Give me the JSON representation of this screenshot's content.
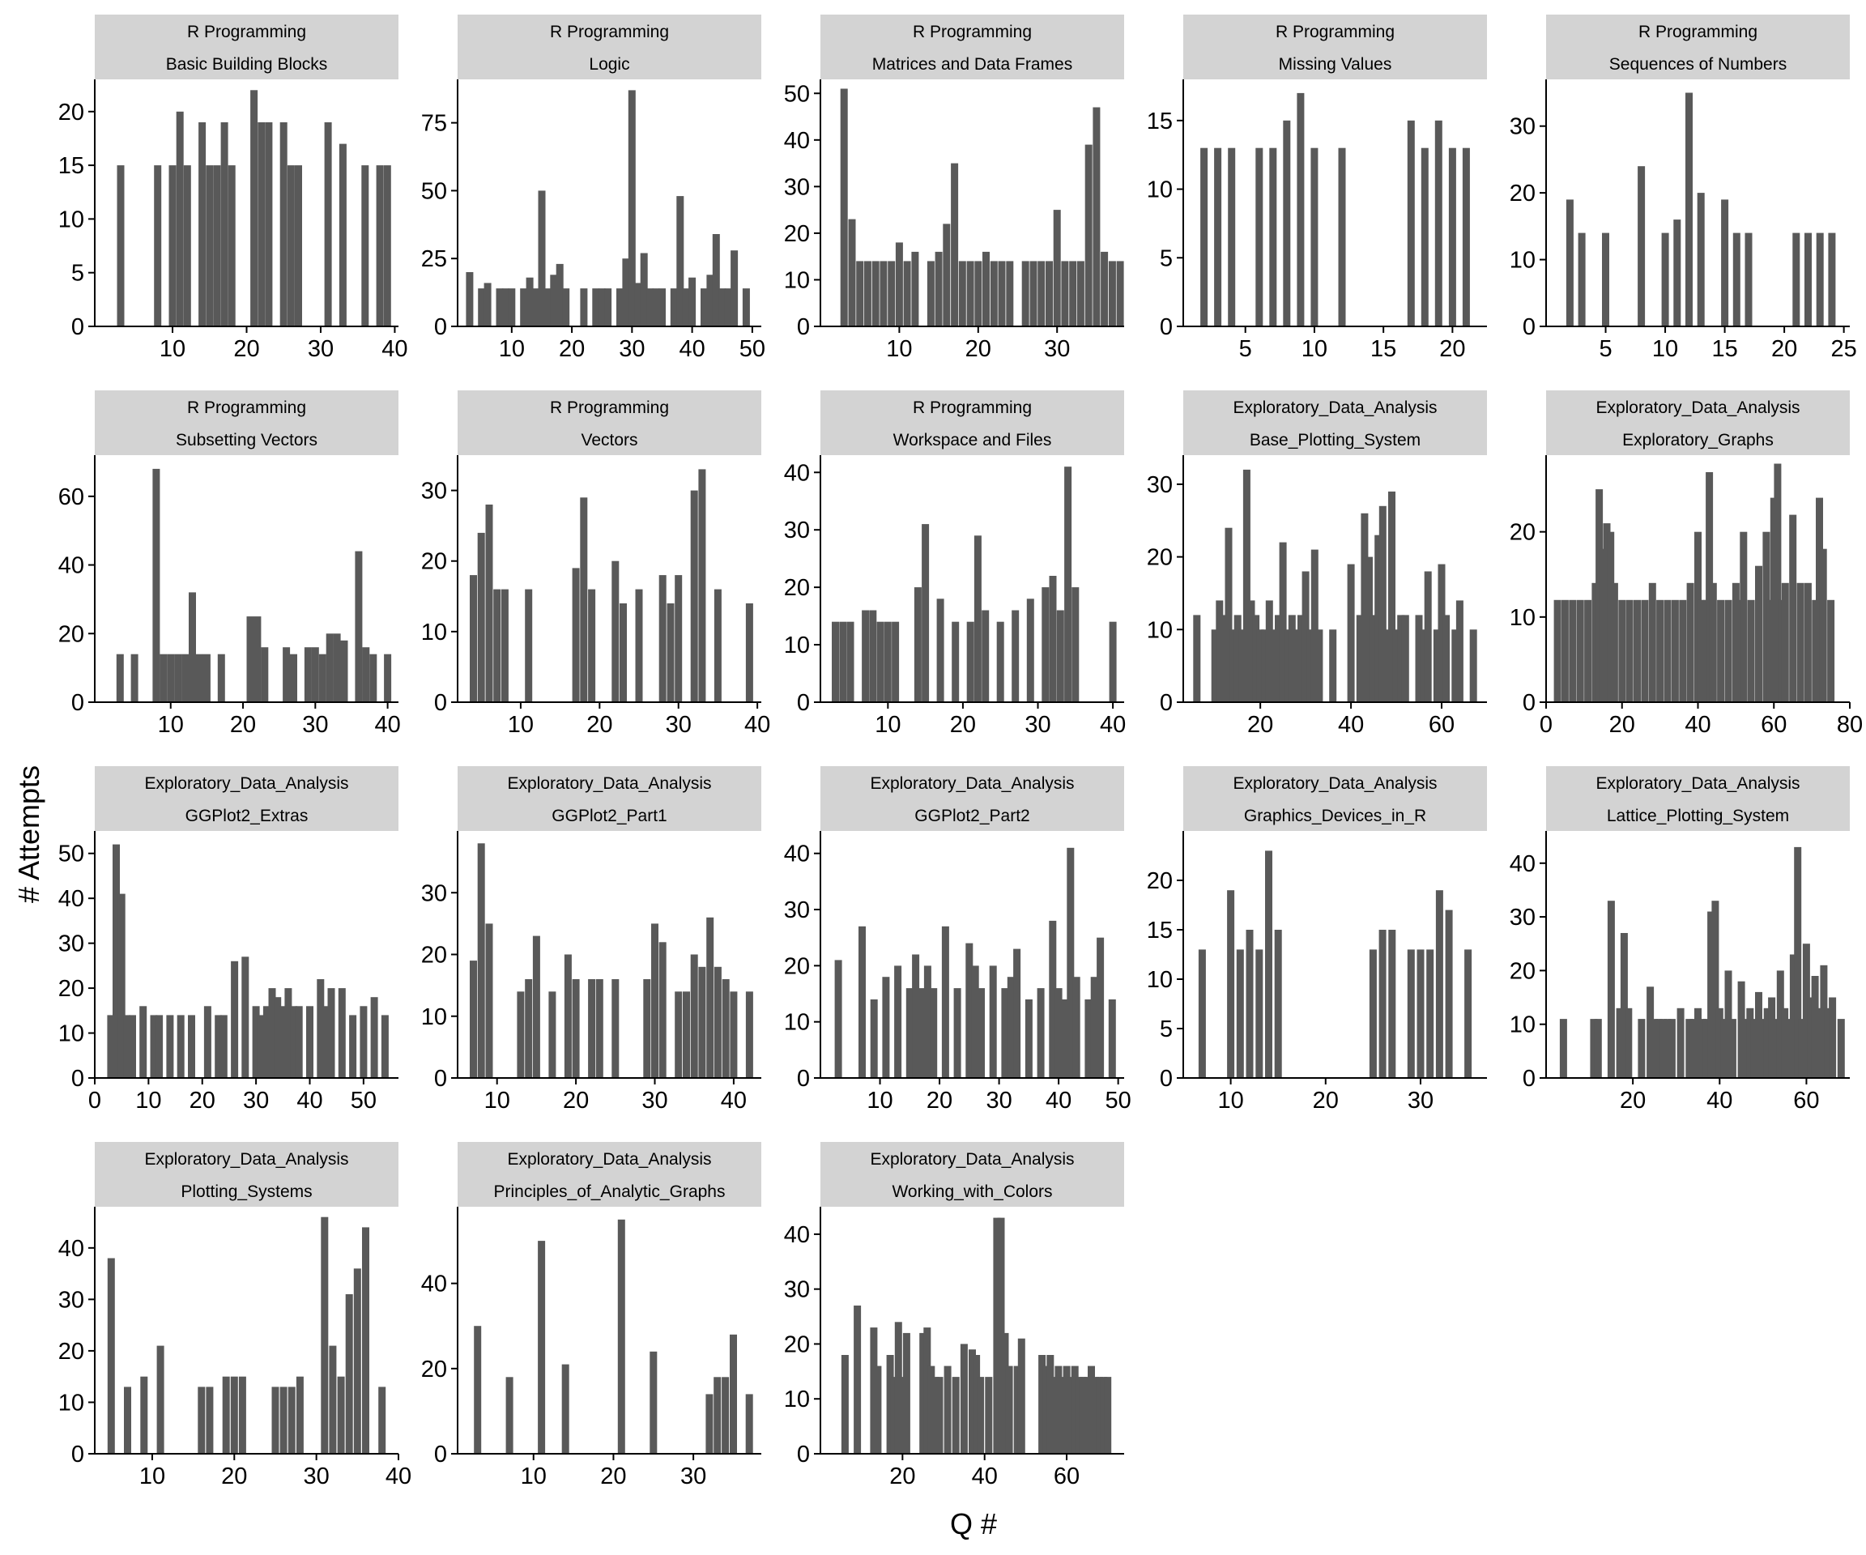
{
  "figure": {
    "xlabel": "Q #",
    "ylabel": "# Attempts",
    "colors": {
      "bar": "#595959",
      "strip": "#d3d3d3",
      "axis": "#000000",
      "background": "#ffffff"
    }
  },
  "chart_data": [
    {
      "type": "bar",
      "strip": [
        "R Programming",
        "Basic Building Blocks"
      ],
      "xlim": [
        -0.5,
        40.5
      ],
      "xticks": [
        10,
        20,
        30,
        40
      ],
      "ylim": [
        0,
        23
      ],
      "yticks": [
        0,
        5,
        10,
        15,
        20
      ],
      "x": [
        3,
        8,
        10,
        11,
        12,
        14,
        15,
        16,
        17,
        18,
        21,
        22,
        23,
        25,
        26,
        27,
        31,
        33,
        36,
        38,
        39
      ],
      "values": [
        15,
        15,
        15,
        20,
        15,
        19,
        15,
        15,
        19,
        15,
        22,
        19,
        19,
        19,
        15,
        15,
        19,
        17,
        15,
        15,
        15
      ]
    },
    {
      "type": "bar",
      "strip": [
        "R Programming",
        "Logic"
      ],
      "xlim": [
        1,
        51.5
      ],
      "xticks": [
        10,
        20,
        30,
        40,
        50
      ],
      "ylim": [
        0,
        91
      ],
      "yticks": [
        0,
        25,
        50,
        75
      ],
      "x": [
        3,
        5,
        6,
        8,
        9,
        10,
        12,
        13,
        14,
        15,
        16,
        17,
        18,
        19,
        22,
        24,
        25,
        26,
        28,
        29,
        30,
        31,
        32,
        33,
        34,
        35,
        37,
        38,
        39,
        40,
        42,
        43,
        44,
        45,
        46,
        47,
        49
      ],
      "values": [
        20,
        14,
        16,
        14,
        14,
        14,
        14,
        18,
        14,
        50,
        14,
        19,
        23,
        14,
        14,
        14,
        14,
        14,
        14,
        25,
        87,
        16,
        27,
        14,
        14,
        14,
        14,
        48,
        14,
        18,
        14,
        19,
        34,
        14,
        14,
        28,
        14
      ]
    },
    {
      "type": "bar",
      "strip": [
        "R Programming",
        "Matrices and Data Frames"
      ],
      "xlim": [
        0,
        38.5
      ],
      "xticks": [
        10,
        20,
        30
      ],
      "ylim": [
        0,
        53
      ],
      "yticks": [
        0,
        10,
        20,
        30,
        40,
        50
      ],
      "x": [
        3,
        4,
        5,
        6,
        7,
        8,
        9,
        10,
        11,
        12,
        14,
        15,
        16,
        17,
        18,
        19,
        20,
        21,
        22,
        23,
        24,
        26,
        27,
        28,
        29,
        30,
        31,
        32,
        33,
        34,
        35,
        36,
        37,
        38
      ],
      "values": [
        51,
        23,
        14,
        14,
        14,
        14,
        14,
        18,
        14,
        16,
        14,
        16,
        22,
        35,
        14,
        14,
        14,
        16,
        14,
        14,
        14,
        14,
        14,
        14,
        14,
        25,
        14,
        14,
        14,
        39,
        47,
        16,
        14,
        14
      ]
    },
    {
      "type": "bar",
      "strip": [
        "R Programming",
        "Missing Values"
      ],
      "xlim": [
        0.5,
        22.5
      ],
      "xticks": [
        5,
        10,
        15,
        20
      ],
      "ylim": [
        0,
        18
      ],
      "yticks": [
        0,
        5,
        10,
        15
      ],
      "x": [
        2,
        3,
        4,
        6,
        7,
        8,
        9,
        10,
        12,
        17,
        18,
        19,
        20,
        21
      ],
      "values": [
        13,
        13,
        13,
        13,
        13,
        15,
        17,
        13,
        13,
        15,
        13,
        15,
        13,
        13
      ]
    },
    {
      "type": "bar",
      "strip": [
        "R Programming",
        "Sequences of Numbers"
      ],
      "xlim": [
        0,
        25.5
      ],
      "xticks": [
        5,
        10,
        15,
        20,
        25
      ],
      "ylim": [
        0,
        37
      ],
      "yticks": [
        0,
        10,
        20,
        30
      ],
      "x": [
        2,
        3,
        5,
        8,
        10,
        11,
        12,
        13,
        15,
        16,
        17,
        21,
        22,
        23,
        24
      ],
      "values": [
        19,
        14,
        14,
        24,
        14,
        16,
        35,
        20,
        19,
        14,
        14,
        14,
        14,
        14,
        14
      ]
    },
    {
      "type": "bar",
      "strip": [
        "R Programming",
        "Subsetting Vectors"
      ],
      "xlim": [
        -0.5,
        41.5
      ],
      "xticks": [
        10,
        20,
        30,
        40
      ],
      "ylim": [
        0,
        72
      ],
      "yticks": [
        0,
        20,
        40,
        60
      ],
      "x": [
        3,
        5,
        8,
        9,
        10,
        11,
        12,
        13,
        14,
        15,
        17,
        21,
        22,
        23,
        26,
        27,
        29,
        30,
        31,
        32,
        33,
        34,
        36,
        37,
        38,
        40
      ],
      "values": [
        14,
        14,
        68,
        14,
        14,
        14,
        14,
        32,
        14,
        14,
        14,
        25,
        25,
        16,
        16,
        14,
        16,
        16,
        14,
        20,
        20,
        18,
        44,
        16,
        14,
        14
      ]
    },
    {
      "type": "bar",
      "strip": [
        "R Programming",
        "Vectors"
      ],
      "xlim": [
        2,
        40.5
      ],
      "xticks": [
        10,
        20,
        30,
        40
      ],
      "ylim": [
        0,
        35
      ],
      "yticks": [
        0,
        10,
        20,
        30
      ],
      "x": [
        4,
        5,
        6,
        7,
        8,
        11,
        17,
        18,
        19,
        22,
        23,
        25,
        28,
        29,
        30,
        32,
        33,
        35,
        39
      ],
      "values": [
        18,
        24,
        28,
        16,
        16,
        16,
        19,
        29,
        16,
        20,
        14,
        16,
        18,
        14,
        18,
        30,
        33,
        16,
        14
      ]
    },
    {
      "type": "bar",
      "strip": [
        "R Programming",
        "Workspace and Files"
      ],
      "xlim": [
        1,
        41.5
      ],
      "xticks": [
        10,
        20,
        30,
        40
      ],
      "ylim": [
        0,
        43
      ],
      "yticks": [
        0,
        10,
        20,
        30,
        40
      ],
      "x": [
        3,
        4,
        5,
        7,
        8,
        9,
        10,
        11,
        14,
        15,
        17,
        19,
        21,
        22,
        23,
        25,
        27,
        29,
        31,
        32,
        33,
        34,
        35,
        40
      ],
      "values": [
        14,
        14,
        14,
        16,
        16,
        14,
        14,
        14,
        20,
        31,
        18,
        14,
        14,
        29,
        16,
        14,
        16,
        18,
        20,
        22,
        16,
        41,
        20,
        14
      ]
    },
    {
      "type": "bar",
      "strip": [
        "Exploratory_Data_Analysis",
        "Base_Plotting_System"
      ],
      "xlim": [
        3,
        70
      ],
      "xticks": [
        20,
        40,
        60
      ],
      "ylim": [
        0,
        34
      ],
      "yticks": [
        0,
        10,
        20,
        30
      ],
      "x": [
        6,
        10,
        11,
        12,
        13,
        14,
        15,
        16,
        17,
        18,
        19,
        20,
        21,
        22,
        23,
        24,
        25,
        26,
        27,
        28,
        29,
        30,
        31,
        32,
        33,
        36,
        40,
        42,
        43,
        44,
        45,
        46,
        47,
        48,
        49,
        50,
        51,
        52,
        55,
        56,
        57,
        59,
        60,
        61,
        63,
        64,
        67
      ],
      "values": [
        12,
        10,
        14,
        12,
        24,
        10,
        12,
        10,
        32,
        14,
        12,
        10,
        10,
        14,
        10,
        12,
        22,
        10,
        12,
        10,
        12,
        18,
        10,
        21,
        10,
        10,
        19,
        12,
        26,
        20,
        12,
        23,
        27,
        10,
        29,
        10,
        12,
        12,
        12,
        10,
        18,
        10,
        19,
        12,
        10,
        14,
        10
      ]
    },
    {
      "type": "bar",
      "strip": [
        "Exploratory_Data_Analysis",
        "Exploratory_Graphs"
      ],
      "xlim": [
        0,
        80
      ],
      "xticks": [
        0,
        20,
        40,
        60,
        80
      ],
      "ylim": [
        0,
        29
      ],
      "yticks": [
        0,
        10,
        20
      ],
      "x": [
        3,
        5,
        7,
        9,
        11,
        13,
        14,
        15,
        16,
        17,
        18,
        20,
        22,
        24,
        26,
        28,
        30,
        32,
        34,
        36,
        38,
        40,
        41,
        42,
        43,
        44,
        46,
        48,
        50,
        51,
        52,
        54,
        56,
        58,
        59,
        60,
        61,
        62,
        63,
        65,
        67,
        69,
        71,
        72,
        73,
        75
      ],
      "values": [
        12,
        12,
        12,
        12,
        12,
        14,
        25,
        18,
        21,
        20,
        14,
        12,
        12,
        12,
        12,
        14,
        12,
        12,
        12,
        12,
        14,
        20,
        12,
        12,
        27,
        14,
        12,
        12,
        14,
        12,
        20,
        12,
        16,
        20,
        12,
        24,
        28,
        12,
        14,
        22,
        14,
        14,
        12,
        24,
        18,
        12
      ]
    },
    {
      "type": "bar",
      "strip": [
        "Exploratory_Data_Analysis",
        "GGPlot2_Extras"
      ],
      "xlim": [
        0,
        56.5
      ],
      "xticks": [
        0,
        10,
        20,
        30,
        40,
        50
      ],
      "ylim": [
        0,
        55
      ],
      "yticks": [
        0,
        10,
        20,
        30,
        40,
        50
      ],
      "x": [
        3,
        4,
        5,
        6,
        7,
        9,
        11,
        12,
        14,
        16,
        18,
        21,
        23,
        24,
        26,
        28,
        30,
        31,
        32,
        33,
        34,
        35,
        36,
        37,
        38,
        40,
        42,
        43,
        44,
        46,
        48,
        50,
        52,
        54
      ],
      "values": [
        14,
        52,
        41,
        14,
        14,
        16,
        14,
        14,
        14,
        14,
        14,
        16,
        14,
        14,
        26,
        27,
        16,
        14,
        16,
        20,
        18,
        16,
        20,
        16,
        16,
        16,
        22,
        16,
        20,
        20,
        14,
        16,
        18,
        14
      ]
    },
    {
      "type": "bar",
      "strip": [
        "Exploratory_Data_Analysis",
        "GGPlot2_Part1"
      ],
      "xlim": [
        5,
        43.5
      ],
      "xticks": [
        10,
        20,
        30,
        40
      ],
      "ylim": [
        0,
        40
      ],
      "yticks": [
        0,
        10,
        20,
        30
      ],
      "x": [
        7,
        8,
        9,
        13,
        14,
        15,
        17,
        19,
        20,
        22,
        23,
        25,
        29,
        30,
        31,
        33,
        34,
        35,
        36,
        37,
        38,
        39,
        40,
        42
      ],
      "values": [
        19,
        38,
        25,
        14,
        16,
        23,
        14,
        20,
        16,
        16,
        16,
        16,
        16,
        25,
        22,
        14,
        14,
        20,
        18,
        26,
        18,
        16,
        14,
        14
      ]
    },
    {
      "type": "bar",
      "strip": [
        "Exploratory_Data_Analysis",
        "GGPlot2_Part2"
      ],
      "xlim": [
        0,
        51
      ],
      "xticks": [
        10,
        20,
        30,
        40,
        50
      ],
      "ylim": [
        0,
        44
      ],
      "yticks": [
        0,
        10,
        20,
        30,
        40
      ],
      "x": [
        3,
        7,
        9,
        11,
        13,
        15,
        16,
        17,
        18,
        19,
        21,
        23,
        25,
        26,
        27,
        29,
        31,
        32,
        33,
        35,
        37,
        39,
        40,
        41,
        42,
        43,
        45,
        46,
        47,
        49
      ],
      "values": [
        21,
        27,
        14,
        18,
        20,
        16,
        22,
        16,
        20,
        16,
        27,
        16,
        24,
        20,
        16,
        20,
        16,
        18,
        23,
        14,
        16,
        28,
        16,
        14,
        41,
        18,
        14,
        18,
        25,
        14
      ]
    },
    {
      "type": "bar",
      "strip": [
        "Exploratory_Data_Analysis",
        "Graphics_Devices_in_R"
      ],
      "xlim": [
        5,
        37
      ],
      "xticks": [
        10,
        20,
        30
      ],
      "ylim": [
        0,
        25
      ],
      "yticks": [
        0,
        5,
        10,
        15,
        20
      ],
      "x": [
        7,
        10,
        11,
        12,
        13,
        14,
        15,
        25,
        26,
        27,
        29,
        30,
        31,
        32,
        33,
        35
      ],
      "values": [
        13,
        19,
        13,
        15,
        13,
        23,
        15,
        13,
        15,
        15,
        13,
        13,
        13,
        19,
        17,
        13
      ]
    },
    {
      "type": "bar",
      "strip": [
        "Exploratory_Data_Analysis",
        "Lattice_Plotting_System"
      ],
      "xlim": [
        0,
        70
      ],
      "xticks": [
        20,
        40,
        60
      ],
      "ylim": [
        0,
        46
      ],
      "yticks": [
        0,
        10,
        20,
        30,
        40
      ],
      "x": [
        4,
        11,
        12,
        15,
        17,
        18,
        19,
        22,
        24,
        25,
        26,
        27,
        28,
        29,
        31,
        33,
        34,
        35,
        36,
        37,
        38,
        39,
        40,
        41,
        42,
        43,
        45,
        46,
        47,
        48,
        49,
        50,
        51,
        52,
        53,
        54,
        55,
        56,
        57,
        58,
        59,
        60,
        61,
        62,
        63,
        64,
        65,
        66,
        68
      ],
      "values": [
        11,
        11,
        11,
        33,
        13,
        27,
        13,
        11,
        17,
        11,
        11,
        11,
        11,
        11,
        13,
        11,
        11,
        13,
        11,
        11,
        31,
        33,
        13,
        11,
        20,
        11,
        18,
        11,
        13,
        11,
        16,
        11,
        13,
        15,
        11,
        20,
        13,
        11,
        23,
        43,
        11,
        25,
        15,
        19,
        13,
        21,
        13,
        15,
        11
      ]
    },
    {
      "type": "bar",
      "strip": [
        "Exploratory_Data_Analysis",
        "Plotting_Systems"
      ],
      "xlim": [
        3,
        40
      ],
      "xticks": [
        10,
        20,
        30,
        40
      ],
      "ylim": [
        0,
        48
      ],
      "yticks": [
        0,
        10,
        20,
        30,
        40
      ],
      "x": [
        5,
        7,
        9,
        11,
        16,
        17,
        19,
        20,
        21,
        25,
        26,
        27,
        28,
        31,
        32,
        33,
        34,
        35,
        36,
        38
      ],
      "values": [
        38,
        13,
        15,
        21,
        13,
        13,
        15,
        15,
        15,
        13,
        13,
        13,
        15,
        46,
        21,
        15,
        31,
        36,
        44,
        13
      ]
    },
    {
      "type": "bar",
      "strip": [
        "Exploratory_Data_Analysis",
        "Principles_of_Analytic_Graphs"
      ],
      "xlim": [
        0.5,
        38.5
      ],
      "xticks": [
        10,
        20,
        30
      ],
      "ylim": [
        0,
        58
      ],
      "yticks": [
        0,
        20,
        40
      ],
      "x": [
        3,
        7,
        11,
        14,
        21,
        25,
        32,
        33,
        34,
        35,
        37
      ],
      "values": [
        30,
        18,
        50,
        21,
        55,
        24,
        14,
        18,
        18,
        28,
        14
      ]
    },
    {
      "type": "bar",
      "strip": [
        "Exploratory_Data_Analysis",
        "Working_with_Colors"
      ],
      "xlim": [
        0,
        74
      ],
      "xticks": [
        20,
        40,
        60
      ],
      "ylim": [
        0,
        45
      ],
      "yticks": [
        0,
        10,
        20,
        30,
        40
      ],
      "x": [
        6,
        9,
        13,
        14,
        17,
        18,
        19,
        20,
        21,
        25,
        26,
        27,
        28,
        29,
        31,
        33,
        35,
        37,
        38,
        39,
        41,
        43,
        44,
        45,
        46,
        48,
        49,
        54,
        55,
        56,
        57,
        58,
        59,
        60,
        61,
        62,
        63,
        64,
        65,
        66,
        67,
        68,
        69,
        70
      ],
      "values": [
        18,
        27,
        23,
        16,
        18,
        14,
        24,
        14,
        22,
        22,
        23,
        16,
        14,
        14,
        16,
        14,
        20,
        19,
        18,
        14,
        14,
        43,
        43,
        22,
        16,
        16,
        21,
        18,
        16,
        18,
        14,
        16,
        14,
        16,
        14,
        16,
        14,
        14,
        14,
        16,
        14,
        14,
        14,
        14
      ]
    }
  ]
}
